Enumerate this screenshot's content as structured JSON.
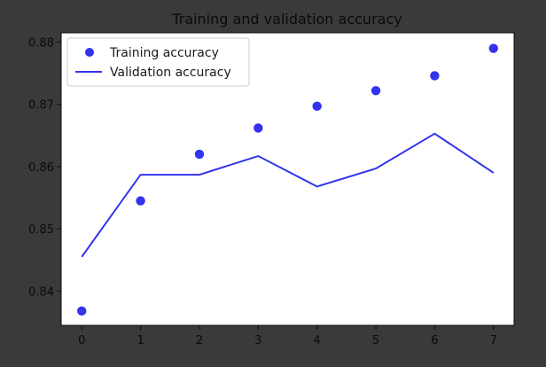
{
  "chart_data": {
    "type": "line",
    "title": "Training and validation accuracy",
    "xlabel": "",
    "ylabel": "",
    "x": [
      0,
      1,
      2,
      3,
      4,
      5,
      6,
      7
    ],
    "xticks": [
      "0",
      "1",
      "2",
      "3",
      "4",
      "5",
      "6",
      "7"
    ],
    "yticks": [
      "0.84",
      "0.85",
      "0.86",
      "0.87",
      "0.88"
    ],
    "xlim": [
      -0.35,
      7.35
    ],
    "ylim": [
      0.8345,
      0.8815
    ],
    "grid": false,
    "legend_position": "upper-left",
    "series": [
      {
        "name": "Training accuracy",
        "style": "markers",
        "color": "#3333ee",
        "values": [
          0.8368,
          0.8545,
          0.862,
          0.8662,
          0.8697,
          0.8722,
          0.8746,
          0.879
        ]
      },
      {
        "name": "Validation accuracy",
        "style": "line",
        "color": "#3333ee",
        "values": [
          0.8455,
          0.8587,
          0.8587,
          0.8617,
          0.8568,
          0.8597,
          0.8653,
          0.859
        ]
      }
    ]
  },
  "colors": {
    "background": "#3a3a3a",
    "plot_area": "#ffffff",
    "series": "#3333ee"
  }
}
